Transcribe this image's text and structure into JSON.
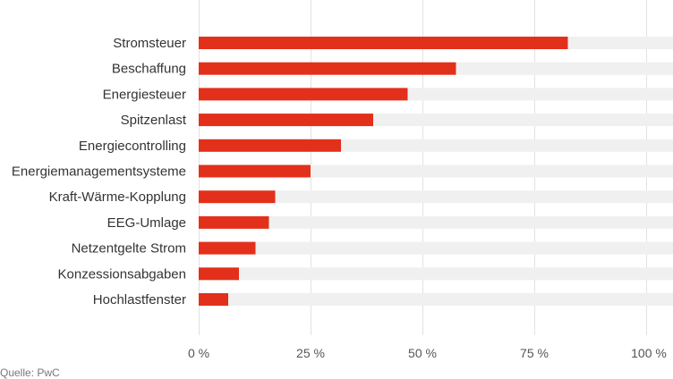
{
  "chart_data": {
    "type": "bar",
    "orientation": "horizontal",
    "categories": [
      "Stromsteuer",
      "Beschaffung",
      "Energiesteuer",
      "Spitzenlast",
      "Energiecontrolling",
      "Energiemanagementsysteme",
      "Kraft-Wärme-Kopplung",
      "EEG-Umlage",
      "Netzentgelte Strom",
      "Konzessionsabgaben",
      "Hochlastfenster"
    ],
    "values": [
      82.5,
      57.5,
      46.7,
      39.0,
      31.8,
      25.0,
      17.1,
      15.7,
      12.7,
      9.0,
      6.6
    ],
    "xlim": [
      0,
      100
    ],
    "ticks": [
      0,
      25,
      50,
      75,
      100
    ],
    "tick_labels": [
      "0 %",
      "25 %",
      "50 %",
      "75 %",
      "100 %"
    ],
    "title": "",
    "xlabel": "",
    "ylabel": "",
    "grid": true,
    "legend": "none",
    "colors": {
      "bar": "#e3301b",
      "track": "#f0f0f0",
      "grid": "#e2e2e2"
    }
  },
  "source": "Quelle: PwC"
}
